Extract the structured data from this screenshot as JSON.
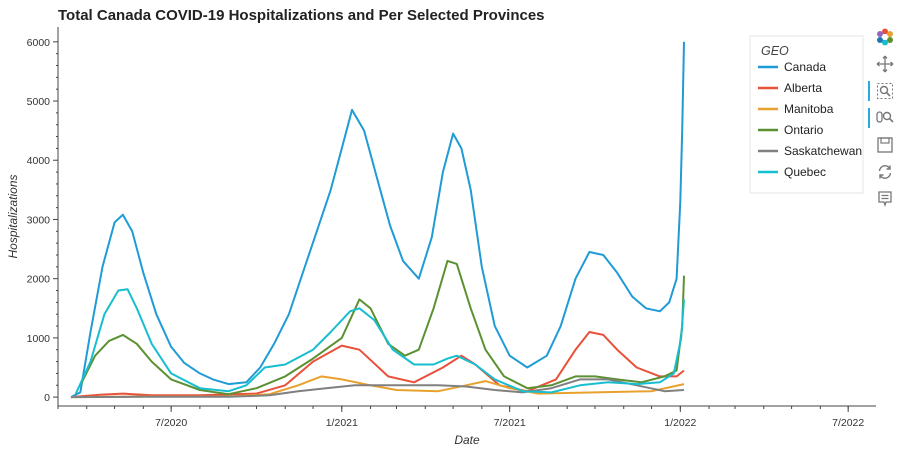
{
  "chart_data": {
    "type": "line",
    "title": "Total Canada COVID-19 Hospitalizations and Per Selected Provinces",
    "xlabel": "Date",
    "ylabel": "Hospitalizations",
    "xlim": [
      "2020-03-01",
      "2022-07-31"
    ],
    "ylim": [
      -150,
      6250
    ],
    "x_ticks": [
      "7/2020",
      "1/2021",
      "7/2021",
      "1/2022",
      "7/2022"
    ],
    "y_ticks": [
      "0",
      "1000",
      "2000",
      "3000",
      "4000",
      "5000",
      "6000"
    ],
    "grid": false,
    "legend": {
      "title": "GEO",
      "position": "top-right"
    },
    "series": [
      {
        "name": "Canada",
        "color": "#1f9bd6",
        "points": [
          [
            "2020-03-15",
            0
          ],
          [
            "2020-03-25",
            80
          ],
          [
            "2020-04-05",
            1100
          ],
          [
            "2020-04-18",
            2200
          ],
          [
            "2020-05-01",
            2950
          ],
          [
            "2020-05-10",
            3080
          ],
          [
            "2020-05-20",
            2800
          ],
          [
            "2020-06-01",
            2100
          ],
          [
            "2020-06-15",
            1400
          ],
          [
            "2020-07-01",
            850
          ],
          [
            "2020-07-15",
            580
          ],
          [
            "2020-08-01",
            400
          ],
          [
            "2020-08-15",
            300
          ],
          [
            "2020-09-01",
            220
          ],
          [
            "2020-09-20",
            250
          ],
          [
            "2020-10-05",
            500
          ],
          [
            "2020-10-20",
            900
          ],
          [
            "2020-11-05",
            1400
          ],
          [
            "2020-11-20",
            2100
          ],
          [
            "2020-12-05",
            2800
          ],
          [
            "2020-12-20",
            3500
          ],
          [
            "2021-01-01",
            4200
          ],
          [
            "2021-01-12",
            4850
          ],
          [
            "2021-01-25",
            4500
          ],
          [
            "2021-02-08",
            3700
          ],
          [
            "2021-02-22",
            2900
          ],
          [
            "2021-03-08",
            2300
          ],
          [
            "2021-03-25",
            2000
          ],
          [
            "2021-04-08",
            2700
          ],
          [
            "2021-04-20",
            3800
          ],
          [
            "2021-05-01",
            4450
          ],
          [
            "2021-05-10",
            4200
          ],
          [
            "2021-05-20",
            3500
          ],
          [
            "2021-06-01",
            2200
          ],
          [
            "2021-06-15",
            1200
          ],
          [
            "2021-07-01",
            700
          ],
          [
            "2021-07-20",
            500
          ],
          [
            "2021-08-10",
            700
          ],
          [
            "2021-08-25",
            1200
          ],
          [
            "2021-09-10",
            2000
          ],
          [
            "2021-09-25",
            2450
          ],
          [
            "2021-10-10",
            2400
          ],
          [
            "2021-10-25",
            2100
          ],
          [
            "2021-11-10",
            1700
          ],
          [
            "2021-11-25",
            1500
          ],
          [
            "2021-12-10",
            1450
          ],
          [
            "2021-12-20",
            1600
          ],
          [
            "2021-12-28",
            2000
          ],
          [
            "2022-01-01",
            3300
          ],
          [
            "2022-01-03",
            4500
          ],
          [
            "2022-01-05",
            6000
          ]
        ]
      },
      {
        "name": "Alberta",
        "color": "#e8513a",
        "points": [
          [
            "2020-03-15",
            0
          ],
          [
            "2020-04-15",
            40
          ],
          [
            "2020-05-10",
            60
          ],
          [
            "2020-06-10",
            30
          ],
          [
            "2020-08-01",
            30
          ],
          [
            "2020-10-01",
            60
          ],
          [
            "2020-11-01",
            200
          ],
          [
            "2020-12-01",
            600
          ],
          [
            "2021-01-01",
            870
          ],
          [
            "2021-01-20",
            800
          ],
          [
            "2021-02-20",
            350
          ],
          [
            "2021-03-20",
            250
          ],
          [
            "2021-04-20",
            500
          ],
          [
            "2021-05-10",
            700
          ],
          [
            "2021-05-25",
            550
          ],
          [
            "2021-06-20",
            200
          ],
          [
            "2021-07-20",
            100
          ],
          [
            "2021-08-20",
            300
          ],
          [
            "2021-09-10",
            800
          ],
          [
            "2021-09-25",
            1100
          ],
          [
            "2021-10-10",
            1050
          ],
          [
            "2021-10-25",
            800
          ],
          [
            "2021-11-15",
            500
          ],
          [
            "2021-12-10",
            350
          ],
          [
            "2021-12-28",
            350
          ],
          [
            "2022-01-05",
            450
          ]
        ]
      },
      {
        "name": "Manitoba",
        "color": "#e8a12c",
        "points": [
          [
            "2020-03-15",
            0
          ],
          [
            "2020-06-01",
            10
          ],
          [
            "2020-09-01",
            10
          ],
          [
            "2020-10-15",
            50
          ],
          [
            "2020-11-15",
            200
          ],
          [
            "2020-12-10",
            350
          ],
          [
            "2021-01-01",
            300
          ],
          [
            "2021-02-01",
            200
          ],
          [
            "2021-03-01",
            120
          ],
          [
            "2021-04-15",
            100
          ],
          [
            "2021-05-15",
            200
          ],
          [
            "2021-06-05",
            270
          ],
          [
            "2021-07-01",
            150
          ],
          [
            "2021-08-01",
            60
          ],
          [
            "2021-10-01",
            80
          ],
          [
            "2021-12-01",
            100
          ],
          [
            "2022-01-05",
            220
          ]
        ]
      },
      {
        "name": "Ontario",
        "color": "#5b9132",
        "points": [
          [
            "2020-03-25",
            200
          ],
          [
            "2020-04-10",
            700
          ],
          [
            "2020-04-25",
            950
          ],
          [
            "2020-05-10",
            1050
          ],
          [
            "2020-05-25",
            900
          ],
          [
            "2020-06-10",
            600
          ],
          [
            "2020-07-01",
            300
          ],
          [
            "2020-08-01",
            120
          ],
          [
            "2020-09-01",
            50
          ],
          [
            "2020-10-01",
            150
          ],
          [
            "2020-11-01",
            350
          ],
          [
            "2020-12-01",
            650
          ],
          [
            "2021-01-01",
            1000
          ],
          [
            "2021-01-20",
            1650
          ],
          [
            "2021-02-01",
            1500
          ],
          [
            "2021-02-20",
            900
          ],
          [
            "2021-03-10",
            700
          ],
          [
            "2021-03-25",
            800
          ],
          [
            "2021-04-10",
            1500
          ],
          [
            "2021-04-25",
            2300
          ],
          [
            "2021-05-05",
            2250
          ],
          [
            "2021-05-20",
            1500
          ],
          [
            "2021-06-05",
            800
          ],
          [
            "2021-06-25",
            350
          ],
          [
            "2021-07-20",
            150
          ],
          [
            "2021-08-15",
            200
          ],
          [
            "2021-09-10",
            350
          ],
          [
            "2021-10-01",
            350
          ],
          [
            "2021-10-25",
            300
          ],
          [
            "2021-11-20",
            250
          ],
          [
            "2021-12-15",
            350
          ],
          [
            "2021-12-28",
            450
          ],
          [
            "2022-01-03",
            1200
          ],
          [
            "2022-01-05",
            2050
          ]
        ]
      },
      {
        "name": "Saskatchewan",
        "color": "#808080",
        "points": [
          [
            "2020-03-15",
            0
          ],
          [
            "2020-06-01",
            5
          ],
          [
            "2020-09-01",
            5
          ],
          [
            "2020-10-15",
            30
          ],
          [
            "2020-11-15",
            100
          ],
          [
            "2020-12-15",
            150
          ],
          [
            "2021-01-15",
            200
          ],
          [
            "2021-02-15",
            200
          ],
          [
            "2021-03-15",
            200
          ],
          [
            "2021-04-15",
            200
          ],
          [
            "2021-05-15",
            180
          ],
          [
            "2021-06-15",
            120
          ],
          [
            "2021-07-15",
            80
          ],
          [
            "2021-08-15",
            150
          ],
          [
            "2021-09-15",
            300
          ],
          [
            "2021-10-15",
            300
          ],
          [
            "2021-11-15",
            200
          ],
          [
            "2021-12-15",
            100
          ],
          [
            "2022-01-05",
            120
          ]
        ]
      },
      {
        "name": "Quebec",
        "color": "#17becf",
        "points": [
          [
            "2020-03-20",
            50
          ],
          [
            "2020-04-05",
            600
          ],
          [
            "2020-04-20",
            1400
          ],
          [
            "2020-05-05",
            1800
          ],
          [
            "2020-05-15",
            1820
          ],
          [
            "2020-05-25",
            1500
          ],
          [
            "2020-06-10",
            900
          ],
          [
            "2020-07-01",
            400
          ],
          [
            "2020-08-01",
            150
          ],
          [
            "2020-09-01",
            100
          ],
          [
            "2020-09-20",
            200
          ],
          [
            "2020-10-10",
            500
          ],
          [
            "2020-11-01",
            550
          ],
          [
            "2020-12-01",
            800
          ],
          [
            "2020-12-20",
            1100
          ],
          [
            "2021-01-10",
            1450
          ],
          [
            "2021-01-20",
            1500
          ],
          [
            "2021-02-05",
            1300
          ],
          [
            "2021-02-25",
            800
          ],
          [
            "2021-03-20",
            550
          ],
          [
            "2021-04-10",
            550
          ],
          [
            "2021-04-25",
            650
          ],
          [
            "2021-05-05",
            700
          ],
          [
            "2021-05-25",
            550
          ],
          [
            "2021-06-15",
            300
          ],
          [
            "2021-07-15",
            100
          ],
          [
            "2021-08-15",
            80
          ],
          [
            "2021-09-15",
            200
          ],
          [
            "2021-10-15",
            250
          ],
          [
            "2021-11-15",
            220
          ],
          [
            "2021-12-10",
            250
          ],
          [
            "2021-12-25",
            400
          ],
          [
            "2022-01-02",
            1000
          ],
          [
            "2022-01-05",
            1650
          ]
        ]
      }
    ]
  },
  "toolbar": {
    "tools": [
      {
        "name": "bokeh-logo-icon",
        "color": "#e8513a"
      },
      {
        "name": "pan-icon"
      },
      {
        "name": "box-zoom-icon"
      },
      {
        "name": "wheel-zoom-icon",
        "active": true
      },
      {
        "name": "save-icon"
      },
      {
        "name": "reset-icon"
      },
      {
        "name": "hover-icon"
      }
    ]
  }
}
